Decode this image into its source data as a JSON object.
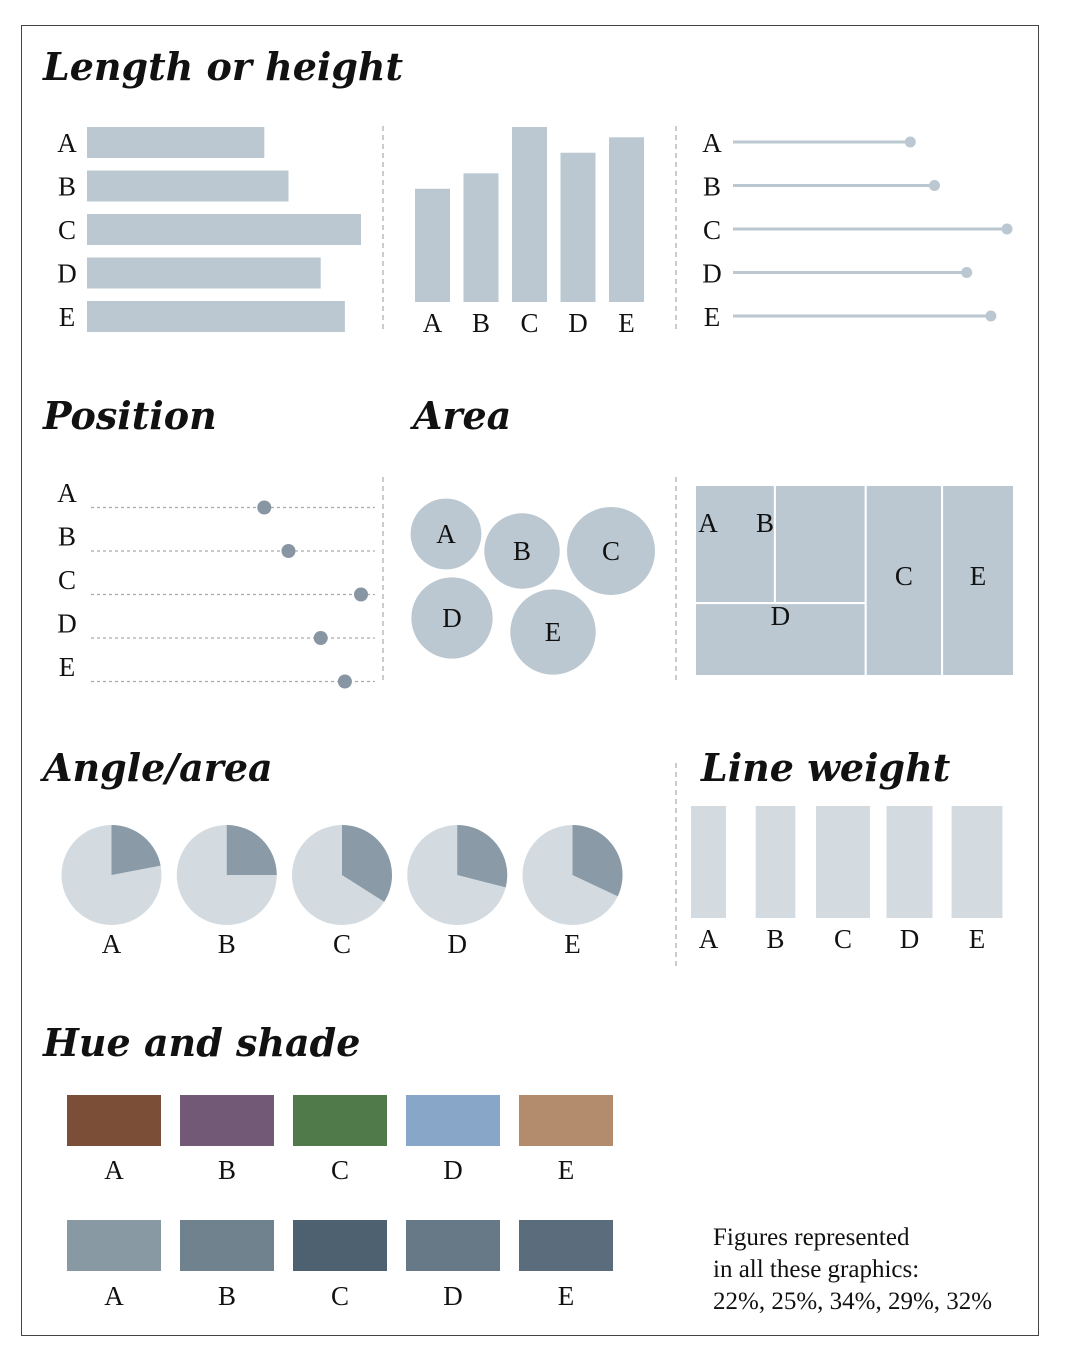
{
  "colors": {
    "bar": "#bbc8d1",
    "dot": "#8896a3",
    "guide": "#aaaaaa",
    "pie_light": "#d3dbe1",
    "pie_dark": "#8a9ba7",
    "lineweight": "#d3dbe1"
  },
  "titles": {
    "length": "Length or height",
    "position": "Position",
    "area": "Area",
    "angle": "Angle/area",
    "lineweight": "Line weight",
    "hue": "Hue and shade"
  },
  "note": {
    "line1": "Figures represented",
    "line2": "in all these graphics:",
    "line3": "22%, 25%, 34%, 29%, 32%"
  },
  "chart_data": {
    "type": "bar",
    "categories": [
      "A",
      "B",
      "C",
      "D",
      "E"
    ],
    "values": [
      22,
      25,
      34,
      29,
      32
    ],
    "unit": "%",
    "hue_colors": [
      "#7a4e37",
      "#725a77",
      "#517a4b",
      "#88a6c8",
      "#b38b6d"
    ],
    "shade_colors": [
      "#8899a4",
      "#71828f",
      "#4e6170",
      "#677887",
      "#5b6d7c"
    ]
  }
}
